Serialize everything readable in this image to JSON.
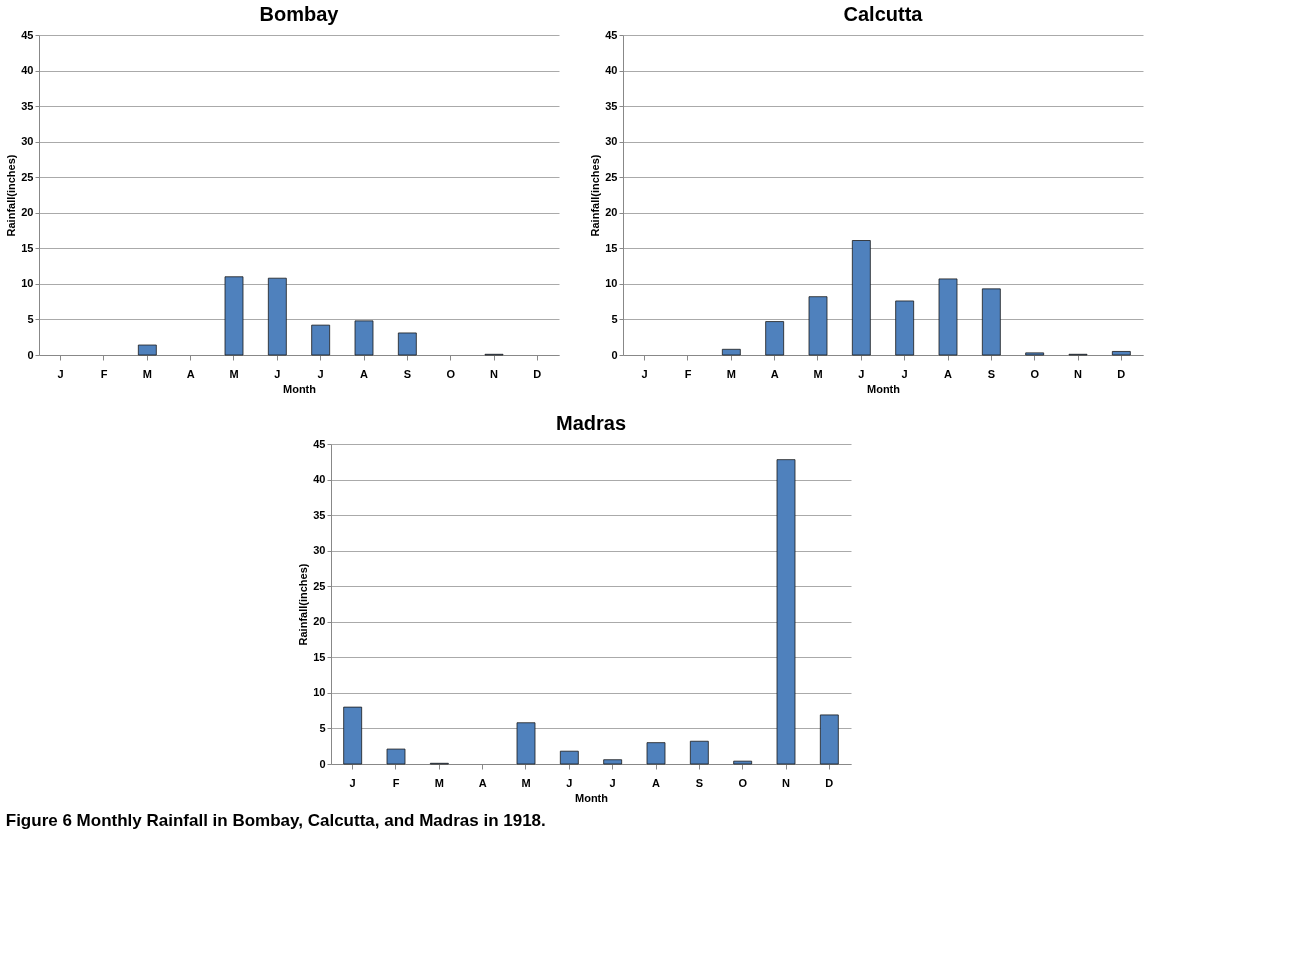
{
  "chart_data": [
    {
      "type": "bar",
      "title": "Bombay",
      "xlabel": "Month",
      "ylabel": "Rainfall(inches)",
      "categories": [
        "J",
        "F",
        "M",
        "A",
        "M",
        "J",
        "J",
        "A",
        "S",
        "O",
        "N",
        "D"
      ],
      "values": [
        0,
        0,
        1.4,
        0,
        11.0,
        10.8,
        4.2,
        4.8,
        3.1,
        0,
        0.1,
        0
      ],
      "color": "#4f81bd",
      "ylim": [
        0,
        45
      ],
      "yticks": [
        0,
        5,
        10,
        15,
        20,
        25,
        30,
        35,
        40,
        45
      ],
      "grid": "y"
    },
    {
      "type": "bar",
      "title": "Calcutta",
      "xlabel": "Month",
      "ylabel": "Rainfall(inches)",
      "categories": [
        "J",
        "F",
        "M",
        "A",
        "M",
        "J",
        "J",
        "A",
        "S",
        "O",
        "N",
        "D"
      ],
      "values": [
        0,
        0,
        0.8,
        4.7,
        8.2,
        16.1,
        7.6,
        10.7,
        9.3,
        0.3,
        0.1,
        0.5
      ],
      "color": "#4f81bd",
      "ylim": [
        0,
        45
      ],
      "yticks": [
        0,
        5,
        10,
        15,
        20,
        25,
        30,
        35,
        40,
        45
      ],
      "grid": "y"
    },
    {
      "type": "bar",
      "title": "Madras",
      "xlabel": "Month",
      "ylabel": "Rainfall(inches)",
      "categories": [
        "J",
        "F",
        "M",
        "A",
        "M",
        "J",
        "J",
        "A",
        "S",
        "O",
        "N",
        "D"
      ],
      "values": [
        8.0,
        2.1,
        0.1,
        0,
        5.8,
        1.8,
        0.6,
        3.0,
        3.2,
        0.4,
        42.8,
        6.9
      ],
      "color": "#4f81bd",
      "ylim": [
        0,
        45
      ],
      "yticks": [
        0,
        5,
        10,
        15,
        20,
        25,
        30,
        35,
        40,
        45
      ],
      "grid": "y",
      "annotations": [
        "Figure 6 Monthly Rainfall in Bombay, Calcutta, and Madras in 1918."
      ]
    }
  ]
}
